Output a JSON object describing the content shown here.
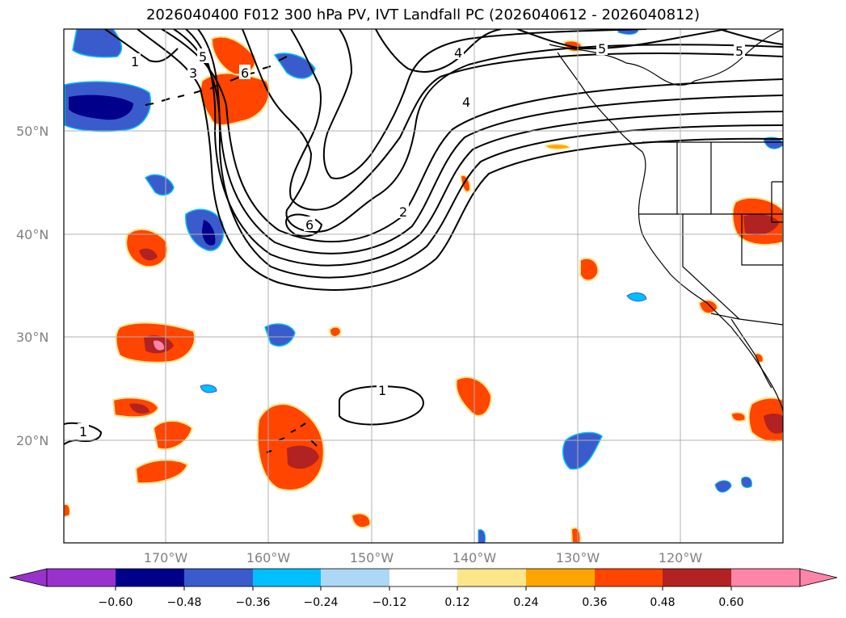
{
  "title": "2026040400 F012 300 hPa PV, IVT Landfall PC (2026040612 - 2026040812)",
  "lat_labels": [
    "50°N",
    "40°N",
    "30°N",
    "20°N"
  ],
  "lon_labels": [
    "170°W",
    "160°W",
    "150°W",
    "140°W",
    "130°W",
    "120°W"
  ],
  "colorbar": {
    "ticks": [
      "−0.60",
      "−0.48",
      "−0.36",
      "−0.24",
      "−0.12",
      "0.12",
      "0.24",
      "0.36",
      "0.48",
      "0.60"
    ],
    "colors": [
      "#9932cc",
      "#00008b",
      "#3a5bcc",
      "#00bfff",
      "#add8f5",
      "#ffffff",
      "#fde68a",
      "#ffa500",
      "#ff4500",
      "#b22222",
      "#ff85a8"
    ]
  },
  "contour_labels": [
    "1",
    "3",
    "5",
    "6",
    "4",
    "5",
    "5",
    "4",
    "6",
    "2",
    "1",
    "1"
  ]
}
